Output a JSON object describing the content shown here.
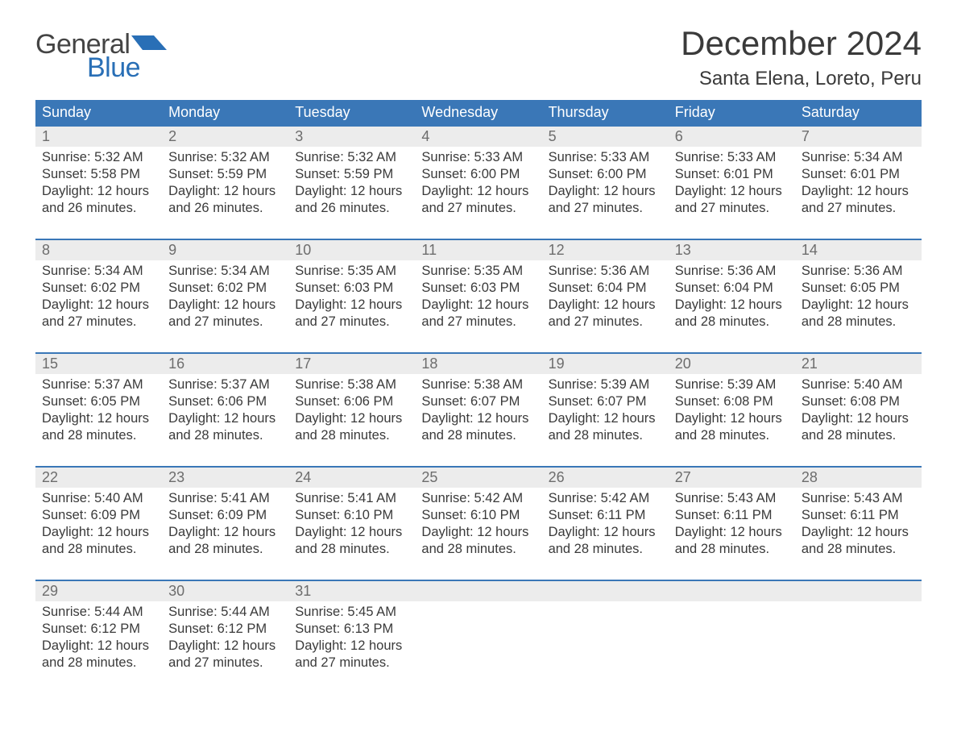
{
  "brand": {
    "word1": "General",
    "word2": "Blue"
  },
  "title": "December 2024",
  "location": "Santa Elena, Loreto, Peru",
  "colors": {
    "header_bg": "#3a77b7",
    "header_text": "#ffffff",
    "date_row_bg": "#ececec",
    "date_text": "#6d6d6d",
    "body_text": "#3a3a3a",
    "accent_rule": "#3a77b7",
    "logo_blue": "#296fb6"
  },
  "day_names": [
    "Sunday",
    "Monday",
    "Tuesday",
    "Wednesday",
    "Thursday",
    "Friday",
    "Saturday"
  ],
  "weeks": [
    {
      "dates": [
        "1",
        "2",
        "3",
        "4",
        "5",
        "6",
        "7"
      ],
      "cells": [
        {
          "sunrise": "Sunrise: 5:32 AM",
          "sunset": "Sunset: 5:58 PM",
          "d1": "Daylight: 12 hours",
          "d2": "and 26 minutes."
        },
        {
          "sunrise": "Sunrise: 5:32 AM",
          "sunset": "Sunset: 5:59 PM",
          "d1": "Daylight: 12 hours",
          "d2": "and 26 minutes."
        },
        {
          "sunrise": "Sunrise: 5:32 AM",
          "sunset": "Sunset: 5:59 PM",
          "d1": "Daylight: 12 hours",
          "d2": "and 26 minutes."
        },
        {
          "sunrise": "Sunrise: 5:33 AM",
          "sunset": "Sunset: 6:00 PM",
          "d1": "Daylight: 12 hours",
          "d2": "and 27 minutes."
        },
        {
          "sunrise": "Sunrise: 5:33 AM",
          "sunset": "Sunset: 6:00 PM",
          "d1": "Daylight: 12 hours",
          "d2": "and 27 minutes."
        },
        {
          "sunrise": "Sunrise: 5:33 AM",
          "sunset": "Sunset: 6:01 PM",
          "d1": "Daylight: 12 hours",
          "d2": "and 27 minutes."
        },
        {
          "sunrise": "Sunrise: 5:34 AM",
          "sunset": "Sunset: 6:01 PM",
          "d1": "Daylight: 12 hours",
          "d2": "and 27 minutes."
        }
      ]
    },
    {
      "dates": [
        "8",
        "9",
        "10",
        "11",
        "12",
        "13",
        "14"
      ],
      "cells": [
        {
          "sunrise": "Sunrise: 5:34 AM",
          "sunset": "Sunset: 6:02 PM",
          "d1": "Daylight: 12 hours",
          "d2": "and 27 minutes."
        },
        {
          "sunrise": "Sunrise: 5:34 AM",
          "sunset": "Sunset: 6:02 PM",
          "d1": "Daylight: 12 hours",
          "d2": "and 27 minutes."
        },
        {
          "sunrise": "Sunrise: 5:35 AM",
          "sunset": "Sunset: 6:03 PM",
          "d1": "Daylight: 12 hours",
          "d2": "and 27 minutes."
        },
        {
          "sunrise": "Sunrise: 5:35 AM",
          "sunset": "Sunset: 6:03 PM",
          "d1": "Daylight: 12 hours",
          "d2": "and 27 minutes."
        },
        {
          "sunrise": "Sunrise: 5:36 AM",
          "sunset": "Sunset: 6:04 PM",
          "d1": "Daylight: 12 hours",
          "d2": "and 27 minutes."
        },
        {
          "sunrise": "Sunrise: 5:36 AM",
          "sunset": "Sunset: 6:04 PM",
          "d1": "Daylight: 12 hours",
          "d2": "and 28 minutes."
        },
        {
          "sunrise": "Sunrise: 5:36 AM",
          "sunset": "Sunset: 6:05 PM",
          "d1": "Daylight: 12 hours",
          "d2": "and 28 minutes."
        }
      ]
    },
    {
      "dates": [
        "15",
        "16",
        "17",
        "18",
        "19",
        "20",
        "21"
      ],
      "cells": [
        {
          "sunrise": "Sunrise: 5:37 AM",
          "sunset": "Sunset: 6:05 PM",
          "d1": "Daylight: 12 hours",
          "d2": "and 28 minutes."
        },
        {
          "sunrise": "Sunrise: 5:37 AM",
          "sunset": "Sunset: 6:06 PM",
          "d1": "Daylight: 12 hours",
          "d2": "and 28 minutes."
        },
        {
          "sunrise": "Sunrise: 5:38 AM",
          "sunset": "Sunset: 6:06 PM",
          "d1": "Daylight: 12 hours",
          "d2": "and 28 minutes."
        },
        {
          "sunrise": "Sunrise: 5:38 AM",
          "sunset": "Sunset: 6:07 PM",
          "d1": "Daylight: 12 hours",
          "d2": "and 28 minutes."
        },
        {
          "sunrise": "Sunrise: 5:39 AM",
          "sunset": "Sunset: 6:07 PM",
          "d1": "Daylight: 12 hours",
          "d2": "and 28 minutes."
        },
        {
          "sunrise": "Sunrise: 5:39 AM",
          "sunset": "Sunset: 6:08 PM",
          "d1": "Daylight: 12 hours",
          "d2": "and 28 minutes."
        },
        {
          "sunrise": "Sunrise: 5:40 AM",
          "sunset": "Sunset: 6:08 PM",
          "d1": "Daylight: 12 hours",
          "d2": "and 28 minutes."
        }
      ]
    },
    {
      "dates": [
        "22",
        "23",
        "24",
        "25",
        "26",
        "27",
        "28"
      ],
      "cells": [
        {
          "sunrise": "Sunrise: 5:40 AM",
          "sunset": "Sunset: 6:09 PM",
          "d1": "Daylight: 12 hours",
          "d2": "and 28 minutes."
        },
        {
          "sunrise": "Sunrise: 5:41 AM",
          "sunset": "Sunset: 6:09 PM",
          "d1": "Daylight: 12 hours",
          "d2": "and 28 minutes."
        },
        {
          "sunrise": "Sunrise: 5:41 AM",
          "sunset": "Sunset: 6:10 PM",
          "d1": "Daylight: 12 hours",
          "d2": "and 28 minutes."
        },
        {
          "sunrise": "Sunrise: 5:42 AM",
          "sunset": "Sunset: 6:10 PM",
          "d1": "Daylight: 12 hours",
          "d2": "and 28 minutes."
        },
        {
          "sunrise": "Sunrise: 5:42 AM",
          "sunset": "Sunset: 6:11 PM",
          "d1": "Daylight: 12 hours",
          "d2": "and 28 minutes."
        },
        {
          "sunrise": "Sunrise: 5:43 AM",
          "sunset": "Sunset: 6:11 PM",
          "d1": "Daylight: 12 hours",
          "d2": "and 28 minutes."
        },
        {
          "sunrise": "Sunrise: 5:43 AM",
          "sunset": "Sunset: 6:11 PM",
          "d1": "Daylight: 12 hours",
          "d2": "and 28 minutes."
        }
      ]
    },
    {
      "dates": [
        "29",
        "30",
        "31",
        "",
        "",
        "",
        ""
      ],
      "cells": [
        {
          "sunrise": "Sunrise: 5:44 AM",
          "sunset": "Sunset: 6:12 PM",
          "d1": "Daylight: 12 hours",
          "d2": "and 28 minutes."
        },
        {
          "sunrise": "Sunrise: 5:44 AM",
          "sunset": "Sunset: 6:12 PM",
          "d1": "Daylight: 12 hours",
          "d2": "and 27 minutes."
        },
        {
          "sunrise": "Sunrise: 5:45 AM",
          "sunset": "Sunset: 6:13 PM",
          "d1": "Daylight: 12 hours",
          "d2": "and 27 minutes."
        },
        {
          "sunrise": "",
          "sunset": "",
          "d1": "",
          "d2": ""
        },
        {
          "sunrise": "",
          "sunset": "",
          "d1": "",
          "d2": ""
        },
        {
          "sunrise": "",
          "sunset": "",
          "d1": "",
          "d2": ""
        },
        {
          "sunrise": "",
          "sunset": "",
          "d1": "",
          "d2": ""
        }
      ]
    }
  ]
}
